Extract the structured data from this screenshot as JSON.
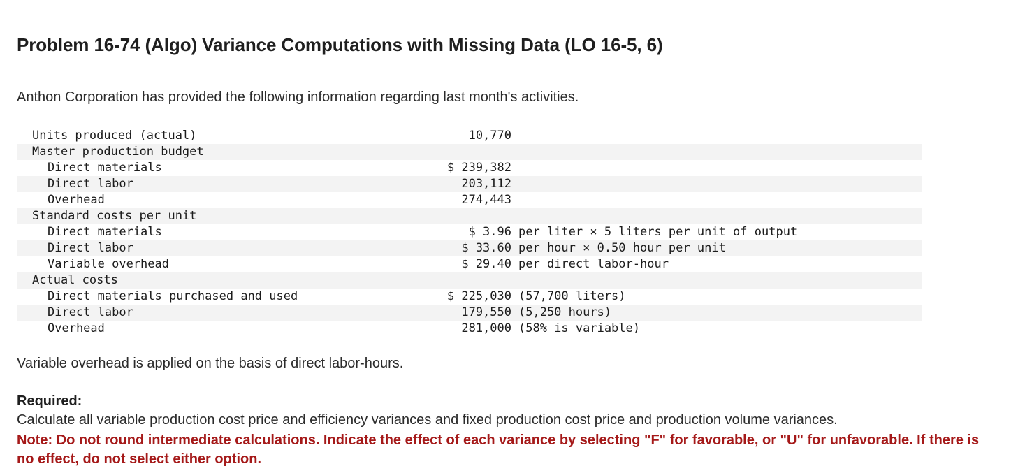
{
  "problem": {
    "title": "Problem 16-74 (Algo) Variance Computations with Missing Data (LO 16-5, 6)",
    "intro": "Anthon Corporation has provided the following information regarding last month's activities.",
    "basis_text": "Variable overhead is applied on the basis of direct labor-hours.",
    "required_heading": "Required:",
    "instruction": "Calculate all variable production cost price and efficiency variances and fixed production cost price and production volume variances.",
    "note": "Note: Do not round intermediate calculations. Indicate the effect of each variance by selecting \"F\" for favorable, or \"U\" for unfavorable. If there is no effect, do not select either option."
  },
  "colors": {
    "note_red": "#a51919",
    "row_shade": "#f3f3f3"
  },
  "data_table": {
    "rows": [
      {
        "label": "Units produced (actual)",
        "value": "10,770",
        "note": ""
      },
      {
        "label": "Master production budget",
        "value": "",
        "note": ""
      },
      {
        "label": "Direct materials",
        "value": "$ 239,382",
        "note": ""
      },
      {
        "label": "Direct labor",
        "value": "203,112",
        "note": ""
      },
      {
        "label": "Overhead",
        "value": "274,443",
        "note": ""
      },
      {
        "label": "Standard costs per unit",
        "value": "",
        "note": ""
      },
      {
        "label": "Direct materials",
        "value": "$ 3.96",
        "note": "per liter × 5 liters per unit of output"
      },
      {
        "label": "Direct labor",
        "value": "$ 33.60",
        "note": "per hour × 0.50 hour per unit"
      },
      {
        "label": "Variable overhead",
        "value": "$ 29.40",
        "note": "per direct labor-hour"
      },
      {
        "label": "Actual costs",
        "value": "",
        "note": ""
      },
      {
        "label": "Direct materials purchased and used",
        "value": "$ 225,030",
        "note": "(57,700 liters)"
      },
      {
        "label": "Direct labor",
        "value": "179,550",
        "note": "(5,250 hours)"
      },
      {
        "label": "Overhead",
        "value": "281,000",
        "note": "(58% is variable)"
      }
    ]
  }
}
